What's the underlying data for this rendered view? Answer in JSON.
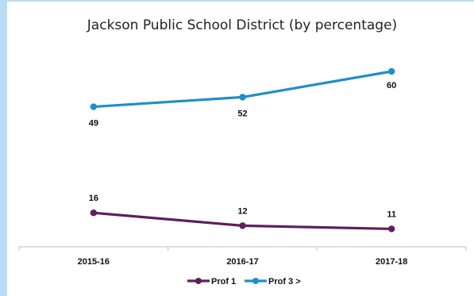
{
  "chart_data": {
    "type": "line",
    "title": "Jackson Public School District (by percentage)",
    "categories": [
      "2015-16",
      "2016-17",
      "2017-18"
    ],
    "series": [
      {
        "name": "Prof 1",
        "values": [
          16,
          12,
          11
        ],
        "color": "#5e1f5e"
      },
      {
        "name": "Prof 3 >",
        "values": [
          49,
          52,
          60
        ],
        "color": "#1f8fc9"
      }
    ],
    "ylim": [
      0,
      70
    ],
    "grid": false,
    "legend": "bottom-center"
  }
}
